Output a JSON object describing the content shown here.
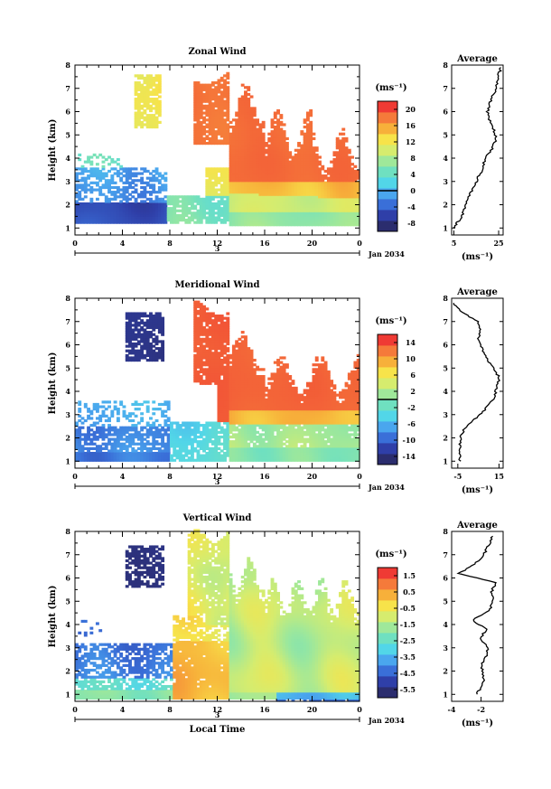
{
  "chart_data": [
    {
      "type": "heatmap",
      "title": "Zonal Wind",
      "xlabel": "",
      "ylabel": "Height (km)",
      "unit_label": "(ms⁻¹)",
      "x_ticks": [
        "0",
        "4",
        "8",
        "12",
        "16",
        "20",
        "0"
      ],
      "xlim": [
        0,
        24
      ],
      "ylim": [
        0.7,
        8
      ],
      "y_ticks": [
        "1",
        "2",
        "3",
        "4",
        "5",
        "6",
        "7",
        "8"
      ],
      "day_marker": "3",
      "month_label": "Jan 2034",
      "colorbar_ticks": [
        "20",
        "16",
        "12",
        "8",
        "4",
        "0",
        "-4",
        "-8"
      ],
      "colorbar_range": [
        -10,
        22
      ],
      "zero_line_value": 0,
      "colormap": [
        "#2b2d6e",
        "#2f3fa8",
        "#3a6fd8",
        "#4aa6ee",
        "#52d6e8",
        "#6fe0c0",
        "#9fe89a",
        "#d6ec6e",
        "#f7e34a",
        "#f7b03a",
        "#f57a3a",
        "#ef3a34"
      ],
      "field_summary": [
        {
          "period": "0-7 LT",
          "heights_km": "1-2",
          "approx_value": -6
        },
        {
          "period": "0-7 LT",
          "heights_km": "2-3.5",
          "approx_value": -1
        },
        {
          "period": "5-7 LT",
          "heights_km": "5.5-7",
          "approx_value": 14
        },
        {
          "period": "7-13 LT",
          "heights_km": "1-2.5",
          "approx_value": 5
        },
        {
          "period": "13-24 LT",
          "heights_km": "1-2.5",
          "approx_value": 10
        },
        {
          "period": "13-24 LT",
          "heights_km": "2.5-5",
          "approx_value": 20
        },
        {
          "period": "10-13 LT",
          "heights_km": "5-7.5",
          "approx_value": 20
        }
      ],
      "average_profile": {
        "title": "Average",
        "xlabel": "(ms⁻¹)",
        "x_ticks": [
          "5",
          "25"
        ],
        "xlim": [
          4,
          27
        ],
        "heights": [
          1.0,
          1.3,
          1.6,
          2.0,
          2.4,
          2.8,
          3.2,
          3.6,
          4.0,
          4.4,
          4.8,
          5.2,
          5.6,
          6.0,
          6.4,
          6.8,
          7.2,
          7.6,
          7.9
        ],
        "values": [
          5,
          7,
          9,
          10,
          12,
          14,
          16,
          18,
          19,
          22,
          24,
          23,
          21,
          20,
          21,
          23,
          24,
          25,
          26
        ]
      }
    },
    {
      "type": "heatmap",
      "title": "Meridional Wind",
      "xlabel": "",
      "ylabel": "Height (km)",
      "unit_label": "(ms⁻¹)",
      "x_ticks": [
        "0",
        "4",
        "8",
        "12",
        "16",
        "20",
        "0"
      ],
      "xlim": [
        0,
        24
      ],
      "ylim": [
        0.7,
        8
      ],
      "y_ticks": [
        "1",
        "2",
        "3",
        "4",
        "5",
        "6",
        "7",
        "8"
      ],
      "day_marker": "3",
      "month_label": "Jan 2034",
      "colorbar_ticks": [
        "14",
        "10",
        "6",
        "2",
        "-2",
        "-6",
        "-10",
        "-14"
      ],
      "colorbar_range": [
        -16,
        16
      ],
      "zero_line_value": 0,
      "colormap": [
        "#2b2d6e",
        "#2f3fa8",
        "#3a6fd8",
        "#4aa6ee",
        "#52d6e8",
        "#6fe0c0",
        "#9fe89a",
        "#d6ec6e",
        "#f7e34a",
        "#f7b03a",
        "#f57a3a",
        "#ef3a34"
      ],
      "field_summary": [
        {
          "period": "0-8 LT",
          "heights_km": "1-3",
          "approx_value": -10
        },
        {
          "period": "4-8 LT",
          "heights_km": "5.5-7",
          "approx_value": -15
        },
        {
          "period": "8-13 LT",
          "heights_km": "1-2.5",
          "approx_value": -4
        },
        {
          "period": "13-24 LT",
          "heights_km": "1-2.5",
          "approx_value": -2
        },
        {
          "period": "13-24 LT",
          "heights_km": "3-5",
          "approx_value": 14
        },
        {
          "period": "10-13 LT",
          "heights_km": "5-7.5",
          "approx_value": 15
        }
      ],
      "average_profile": {
        "title": "Average",
        "xlabel": "(ms⁻¹)",
        "x_ticks": [
          "-5",
          "15"
        ],
        "xlim": [
          -8,
          17
        ],
        "heights": [
          1.0,
          1.4,
          1.8,
          2.2,
          2.6,
          3.0,
          3.4,
          3.8,
          4.2,
          4.6,
          5.0,
          5.4,
          5.8,
          6.2,
          6.6,
          7.0,
          7.4,
          7.8
        ],
        "values": [
          -4,
          -4,
          -4,
          -3,
          0,
          6,
          10,
          13,
          14,
          15,
          12,
          9,
          7,
          5,
          6,
          5,
          -3,
          -7
        ]
      }
    },
    {
      "type": "heatmap",
      "title": "Vertical Wind",
      "xlabel": "Local Time",
      "ylabel": "Height (km)",
      "unit_label": "(ms⁻¹)",
      "x_ticks": [
        "0",
        "4",
        "8",
        "12",
        "16",
        "20",
        "0"
      ],
      "xlim": [
        0,
        24
      ],
      "ylim": [
        0.7,
        8
      ],
      "y_ticks": [
        "1",
        "2",
        "3",
        "4",
        "5",
        "6",
        "7",
        "8"
      ],
      "day_marker": "3",
      "month_label": "Jan 2034",
      "colorbar_ticks": [
        "1.5",
        "0.5",
        "-0.5",
        "-1.5",
        "-2.5",
        "-3.5",
        "-4.5",
        "-5.5"
      ],
      "colorbar_range": [
        -6,
        2
      ],
      "colormap": [
        "#2b2d6e",
        "#2f3fa8",
        "#3a6fd8",
        "#4aa6ee",
        "#52d6e8",
        "#6fe0c0",
        "#9fe89a",
        "#d6ec6e",
        "#f7e34a",
        "#f7b03a",
        "#f57a3a",
        "#ef3a34"
      ],
      "field_summary": [
        {
          "period": "0-8 LT",
          "heights_km": "1-3",
          "approx_value": -4
        },
        {
          "period": "4-8 LT",
          "heights_km": "5.5-7",
          "approx_value": -5.5
        },
        {
          "period": "8-13 LT",
          "heights_km": "1-3",
          "approx_value": 0.5
        },
        {
          "period": "9-13 LT",
          "heights_km": "4-8",
          "approx_value": -0.5
        },
        {
          "period": "13-24 LT",
          "heights_km": "1.5-6",
          "approx_value": -1.2
        }
      ],
      "average_profile": {
        "title": "Average",
        "xlabel": "(ms⁻¹)",
        "x_ticks": [
          "-4",
          "-2"
        ],
        "xlim": [
          -4,
          -0.5
        ],
        "heights": [
          1.0,
          1.4,
          1.8,
          2.2,
          2.6,
          3.0,
          3.4,
          3.8,
          4.2,
          4.6,
          5.0,
          5.4,
          5.8,
          6.2,
          6.6,
          7.0,
          7.4,
          7.8
        ],
        "values": [
          -2.3,
          -1.9,
          -1.8,
          -2.0,
          -1.7,
          -1.5,
          -2.1,
          -1.6,
          -2.6,
          -1.4,
          -1.2,
          -1.3,
          -1.0,
          -3.5,
          -2.4,
          -1.8,
          -1.5,
          -1.2
        ]
      }
    }
  ]
}
